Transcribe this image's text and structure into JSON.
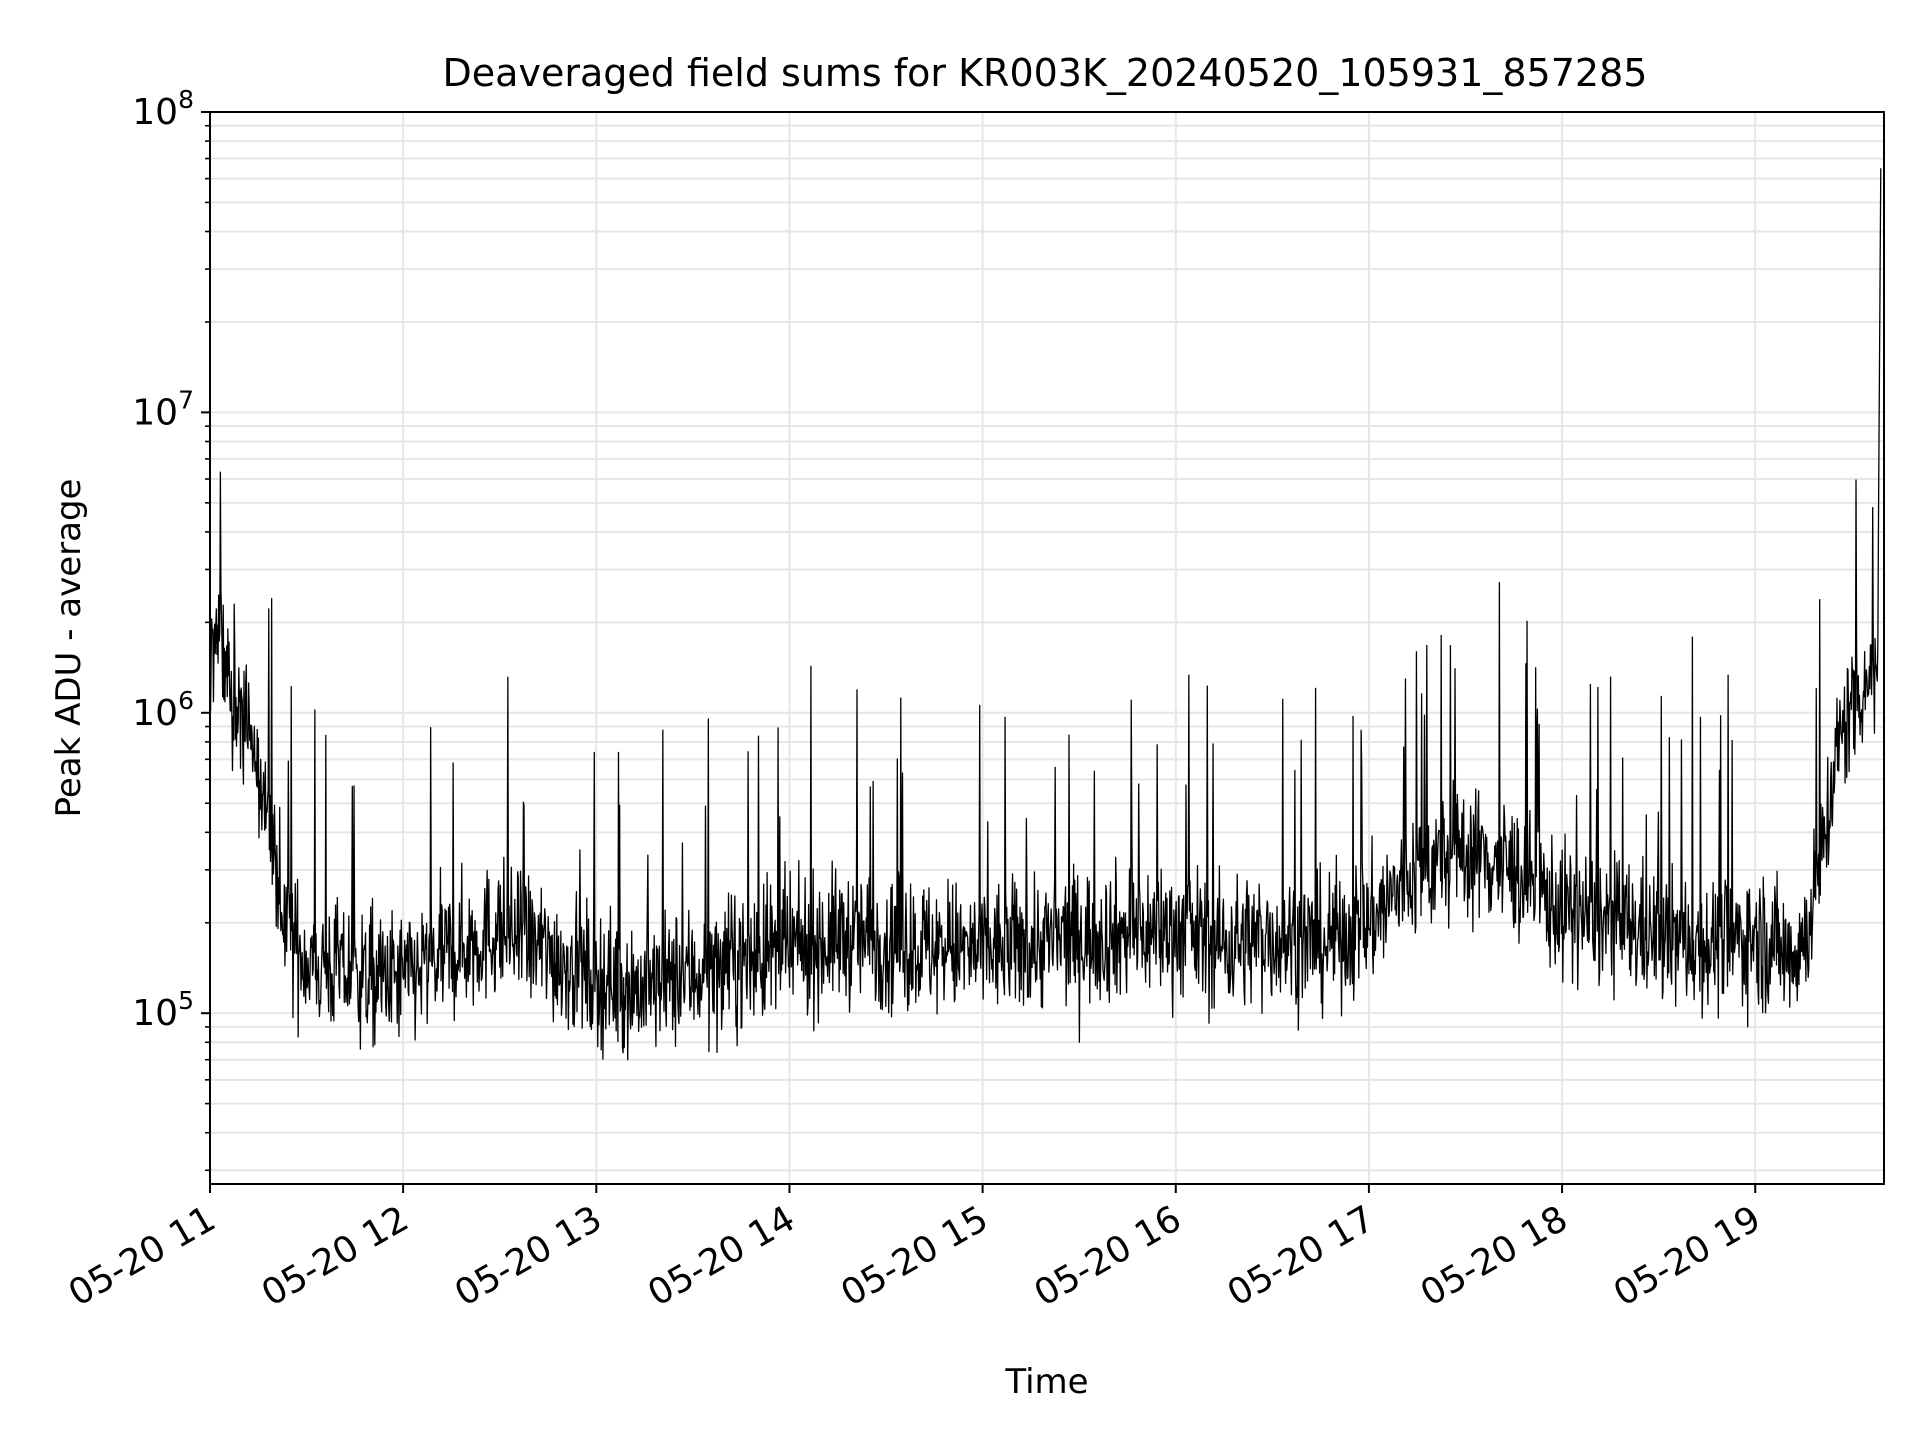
{
  "chart_data": {
    "type": "line",
    "title": "Deaveraged field sums for KR003K_20240520_105931_857285",
    "xlabel": "Time",
    "ylabel": "Peak ADU - average",
    "x_scale": "time",
    "y_scale": "log",
    "xlim": [
      "2024-05-20 11:00",
      "2024-05-20 19:40"
    ],
    "ylim": [
      27000,
      100000000
    ],
    "x_ticks": [
      {
        "value": "2024-05-20 11:00",
        "label": "05-20 11"
      },
      {
        "value": "2024-05-20 12:00",
        "label": "05-20 12"
      },
      {
        "value": "2024-05-20 13:00",
        "label": "05-20 13"
      },
      {
        "value": "2024-05-20 14:00",
        "label": "05-20 14"
      },
      {
        "value": "2024-05-20 15:00",
        "label": "05-20 15"
      },
      {
        "value": "2024-05-20 16:00",
        "label": "05-20 16"
      },
      {
        "value": "2024-05-20 17:00",
        "label": "05-20 17"
      },
      {
        "value": "2024-05-20 18:00",
        "label": "05-20 18"
      },
      {
        "value": "2024-05-20 19:00",
        "label": "05-20 19"
      }
    ],
    "y_ticks": [
      {
        "value": 100000,
        "base": "10",
        "exp": "5"
      },
      {
        "value": 1000000,
        "base": "10",
        "exp": "6"
      },
      {
        "value": 10000000,
        "base": "10",
        "exp": "7"
      },
      {
        "value": 100000000,
        "base": "10",
        "exp": "8"
      }
    ],
    "grid": true,
    "grid_minor": true,
    "line_color": "#000000",
    "grid_color": "#e6e6e6",
    "series": [
      {
        "x": [
          "2024-05-20 11:00",
          "2024-05-20 11:02",
          "2024-05-20 11:04",
          "2024-05-20 11:06",
          "2024-05-20 11:08",
          "2024-05-20 11:10",
          "2024-05-20 11:12",
          "2024-05-20 11:14",
          "2024-05-20 11:16",
          "2024-05-20 11:18",
          "2024-05-20 11:20",
          "2024-05-20 11:22",
          "2024-05-20 11:24",
          "2024-05-20 11:26",
          "2024-05-20 11:28",
          "2024-05-20 11:30",
          "2024-05-20 11:40",
          "2024-05-20 11:50",
          "2024-05-20 12:00",
          "2024-05-20 12:15",
          "2024-05-20 12:30",
          "2024-05-20 12:45",
          "2024-05-20 13:00",
          "2024-05-20 13:15",
          "2024-05-20 13:30",
          "2024-05-20 13:45",
          "2024-05-20 14:00",
          "2024-05-20 14:15",
          "2024-05-20 14:30",
          "2024-05-20 14:45",
          "2024-05-20 15:00",
          "2024-05-20 15:15",
          "2024-05-20 15:30",
          "2024-05-20 15:45",
          "2024-05-20 16:00",
          "2024-05-20 16:15",
          "2024-05-20 16:30",
          "2024-05-20 16:45",
          "2024-05-20 17:00",
          "2024-05-20 17:15",
          "2024-05-20 17:30",
          "2024-05-20 17:45",
          "2024-05-20 18:00",
          "2024-05-20 18:15",
          "2024-05-20 18:30",
          "2024-05-20 18:45",
          "2024-05-20 19:00",
          "2024-05-20 19:10",
          "2024-05-20 19:15",
          "2024-05-20 19:20",
          "2024-05-20 19:25",
          "2024-05-20 19:30",
          "2024-05-20 19:35",
          "2024-05-20 19:38",
          "2024-05-20 19:39"
        ],
        "values": [
          1400000,
          1800000,
          1600000,
          1300000,
          1100000,
          1200000,
          900000,
          700000,
          600000,
          400000,
          300000,
          250000,
          200000,
          170000,
          160000,
          150000,
          140000,
          130000,
          130000,
          160000,
          190000,
          160000,
          130000,
          120000,
          135000,
          150000,
          160000,
          180000,
          175000,
          165000,
          160000,
          170000,
          180000,
          185000,
          190000,
          170000,
          180000,
          170000,
          200000,
          300000,
          350000,
          300000,
          220000,
          200000,
          180000,
          170000,
          180000,
          160000,
          170000,
          300000,
          700000,
          1100000,
          1300000,
          1500000,
          65000000
        ]
      }
    ]
  }
}
